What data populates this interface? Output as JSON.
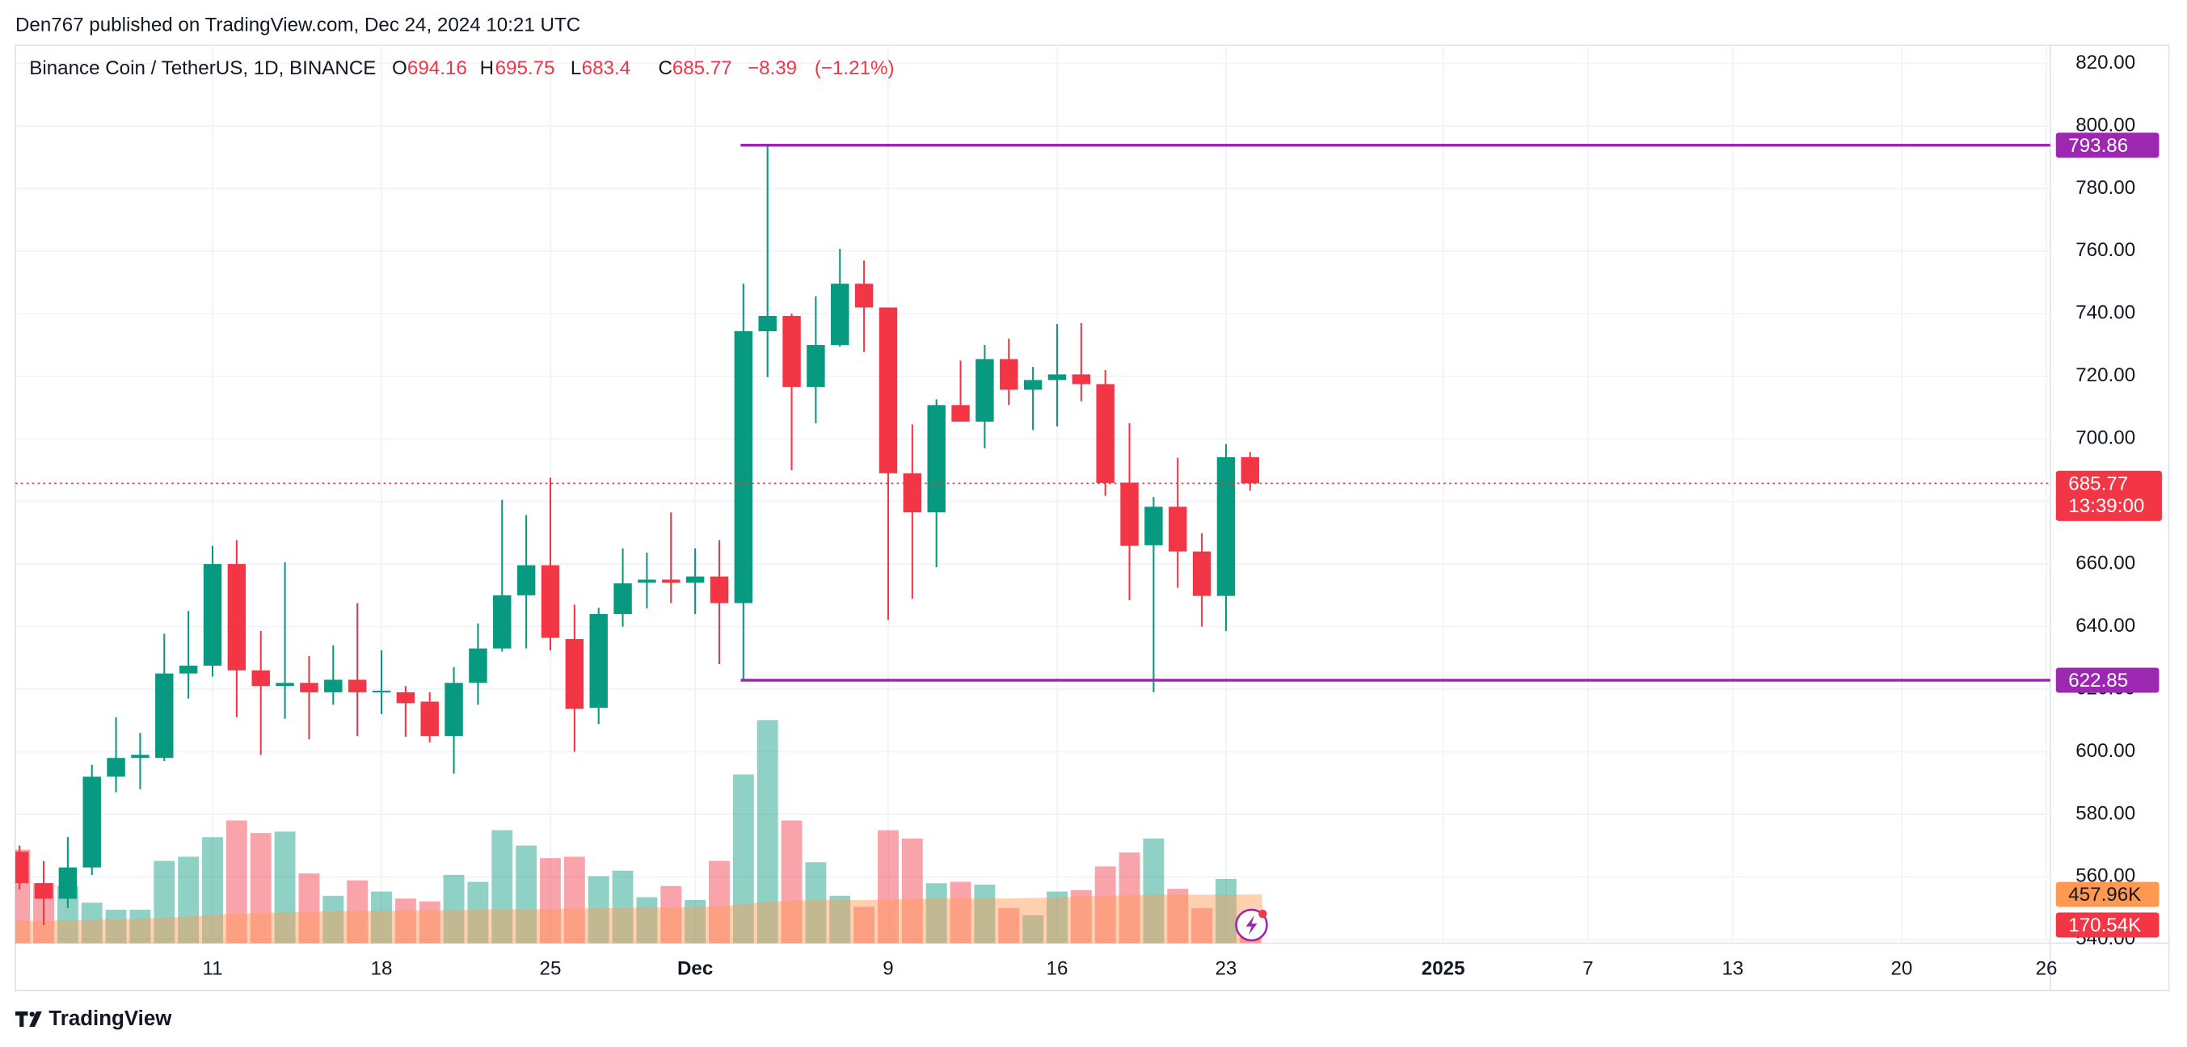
{
  "header": "Den767 published on TradingView.com, Dec 24, 2024 10:21 UTC",
  "footer": "TradingView",
  "chart_data": {
    "type": "candlestick",
    "title": "Binance Coin / TetherUS, 1D, BINANCE",
    "legend_labels": [
      "O",
      "H",
      "L",
      "C"
    ],
    "change": {
      "value": -8.39,
      "label": "−8.39"
    },
    "change_pct": {
      "value": -1.21,
      "label": "(−1.21%)"
    },
    "countdown": "13:39:00",
    "up_color": "#089981",
    "down_color": "#f23645",
    "level_color": "#9c27b0",
    "ma_color": "#ff9850",
    "grid": true,
    "categories": [
      null,
      null,
      null,
      null,
      null,
      null,
      null,
      null,
      "11",
      null,
      null,
      null,
      null,
      null,
      null,
      "18",
      null,
      null,
      null,
      null,
      null,
      null,
      "25",
      null,
      null,
      null,
      null,
      null,
      "Dec",
      null,
      null,
      null,
      null,
      null,
      null,
      null,
      "9",
      null,
      null,
      null,
      null,
      null,
      null,
      "16",
      null,
      null,
      null,
      null,
      null,
      null,
      "23",
      null,
      null,
      null,
      null,
      null,
      null,
      null,
      null,
      "2025",
      null,
      null,
      null,
      null,
      null,
      "7",
      null,
      null,
      null,
      null,
      null,
      "13",
      null,
      null,
      null,
      null,
      null,
      null,
      "20",
      null,
      null,
      null,
      null,
      null,
      "26"
    ],
    "open": [
      568,
      558,
      553,
      563,
      592,
      598,
      598,
      625,
      627.5,
      660,
      626,
      621,
      622,
      619,
      623,
      619,
      619,
      616,
      605,
      622,
      633,
      650,
      659.6,
      636,
      614,
      644,
      654,
      655,
      654,
      656,
      647.5,
      734.4,
      739.3,
      716.6,
      730,
      749.6,
      742,
      689,
      676.5,
      710.8,
      705.5,
      725.5,
      715.7,
      718.8,
      720.6,
      717.5,
      686,
      666,
      678.3,
      664,
      649.8,
      694.16,
      null,
      null,
      null,
      null,
      null,
      null,
      null,
      null,
      null,
      null,
      null,
      null,
      null,
      null,
      null,
      null,
      null,
      null,
      null,
      null,
      null,
      null,
      null,
      null,
      null,
      null,
      null,
      null,
      null,
      null,
      null,
      null,
      null
    ],
    "high": [
      570,
      565,
      572.7,
      595.8,
      611,
      606,
      637.7,
      645,
      665.8,
      667.6,
      638.6,
      660.5,
      630.6,
      634,
      647.5,
      632.4,
      621,
      619,
      627,
      641,
      680.5,
      675.6,
      687.6,
      647,
      646,
      665,
      663.6,
      676.5,
      665,
      667.6,
      749.6,
      793.86,
      740,
      745.6,
      760.7,
      757,
      742,
      704.6,
      712.6,
      725,
      730,
      732,
      723,
      736.7,
      737,
      722,
      705,
      681.4,
      694,
      669.8,
      698.3,
      695.75,
      null,
      null,
      null,
      null,
      null,
      null,
      null,
      null,
      null,
      null,
      null,
      null,
      null,
      null,
      null,
      null,
      null,
      null,
      null,
      null,
      null,
      null,
      null,
      null,
      null,
      null,
      null,
      null,
      null,
      null,
      null,
      null,
      null
    ],
    "low": [
      556,
      544.6,
      550,
      560.6,
      587,
      588,
      597,
      617,
      624,
      611,
      599,
      610.5,
      604,
      615,
      605,
      612,
      604.8,
      603,
      593,
      615,
      632,
      633,
      632.4,
      600,
      608.8,
      640,
      645.8,
      647.5,
      644,
      628,
      622.85,
      719.7,
      690,
      705,
      729.5,
      727.8,
      642.2,
      648.9,
      659,
      705.5,
      697,
      710.8,
      702.8,
      704,
      712,
      681.8,
      648.4,
      619,
      652.4,
      640,
      638.6,
      683.4,
      null,
      null,
      null,
      null,
      null,
      null,
      null,
      null,
      null,
      null,
      null,
      null,
      null,
      null,
      null,
      null,
      null,
      null,
      null,
      null,
      null,
      null,
      null,
      null,
      null,
      null,
      null,
      null,
      null,
      null,
      null,
      null,
      null
    ],
    "close": [
      558,
      553,
      563,
      592,
      598,
      599,
      625,
      627.5,
      660,
      626,
      621,
      622,
      619,
      623,
      619,
      619.5,
      615.5,
      605,
      622,
      633,
      650,
      659.6,
      636.4,
      613.7,
      644,
      653.8,
      655,
      654,
      656,
      647.5,
      734.4,
      739.3,
      716.6,
      730,
      749.6,
      742,
      689,
      676.5,
      710.8,
      705.5,
      725.5,
      715.7,
      718.8,
      720.6,
      717.5,
      685.9,
      665.8,
      678.3,
      664,
      649.8,
      694.16,
      685.77,
      null,
      null,
      null,
      null,
      null,
      null,
      null,
      null,
      null,
      null,
      null,
      null,
      null,
      null,
      null,
      null,
      null,
      null,
      null,
      null,
      null,
      null,
      null,
      null,
      null,
      null,
      null,
      null,
      null,
      null,
      null,
      null,
      null
    ],
    "volume": [
      878,
      563,
      537,
      380,
      314,
      314,
      773,
      812,
      996,
      1153,
      1035,
      1048,
      655,
      445,
      590,
      485,
      419,
      393,
      642,
      576,
      1061,
      917,
      799,
      812,
      629,
      681,
      432,
      537,
      406,
      773,
      1585,
      2096,
      1153,
      760,
      445,
      341,
      1061,
      983,
      563,
      576,
      550,
      328,
      262,
      485,
      498,
      721,
      852,
      983,
      511,
      328,
      603,
      170.54,
      null,
      null,
      null,
      null,
      null,
      null,
      null,
      null,
      null,
      null,
      null,
      null,
      null,
      null,
      null,
      null,
      null,
      null,
      null,
      null,
      null,
      null,
      null,
      null,
      null,
      null,
      null,
      null,
      null,
      null,
      null,
      null,
      null
    ],
    "volume_ma": [
      210,
      210,
      215,
      220,
      225,
      230,
      240,
      250,
      265,
      275,
      285,
      290,
      295,
      300,
      300,
      305,
      305,
      310,
      310,
      315,
      320,
      320,
      320,
      325,
      330,
      330,
      335,
      335,
      340,
      345,
      365,
      390,
      400,
      405,
      405,
      405,
      410,
      415,
      420,
      420,
      420,
      420,
      425,
      430,
      440,
      445,
      450,
      455,
      455,
      455,
      455,
      457.96,
      null,
      null,
      null,
      null,
      null,
      null,
      null,
      null,
      null,
      null,
      null,
      null,
      null,
      null,
      null,
      null,
      null,
      null,
      null,
      null,
      null,
      null,
      null,
      null,
      null,
      null,
      null,
      null,
      null,
      null,
      null,
      null,
      null
    ],
    "volume_ma_label": {
      "value": 457.96,
      "label": "457.96K"
    },
    "volume_last_label": {
      "value": 170.54,
      "label": "170.54K"
    },
    "volume_lim": [
      0,
      8436
    ],
    "levels": [
      793.86,
      622.85
    ],
    "ylim": [
      538.8,
      825.8
    ],
    "yticks": [
      {
        "value": 540,
        "label": "540.00"
      },
      {
        "value": 560,
        "label": "560.00"
      },
      {
        "value": 580,
        "label": "580.00"
      },
      {
        "value": 600,
        "label": "600.00"
      },
      {
        "value": 620,
        "label": "620.00"
      },
      {
        "value": 640,
        "label": "640.00"
      },
      {
        "value": 660,
        "label": "660.00"
      },
      {
        "value": 680,
        "label": "680.00"
      },
      {
        "value": 700,
        "label": "700.00"
      },
      {
        "value": 720,
        "label": "720.00"
      },
      {
        "value": 740,
        "label": "740.00"
      },
      {
        "value": 760,
        "label": "760.00"
      },
      {
        "value": 780,
        "label": "780.00"
      },
      {
        "value": 800,
        "label": "800.00"
      },
      {
        "value": 820,
        "label": "820.00"
      }
    ]
  }
}
